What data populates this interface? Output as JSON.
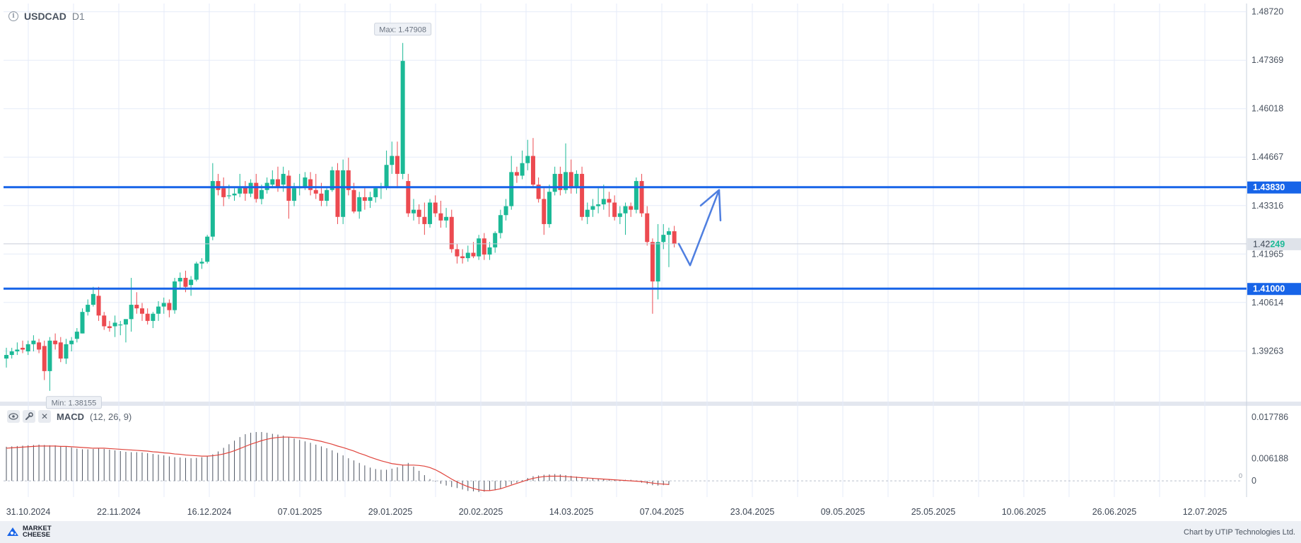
{
  "header": {
    "symbol": "USDCAD",
    "timeframe": "D1"
  },
  "macd": {
    "name": "MACD",
    "params": "(12, 26, 9)"
  },
  "footer": {
    "brand_line1": "MARKET",
    "brand_line2": "CHEESE",
    "credit": "Chart by UTIP Technologies Ltd."
  },
  "colors": {
    "bull": "#1bb996",
    "bear": "#ec4a50",
    "level_line": "#1764e8",
    "signal": "#e0443c",
    "arrow": "#4f7fe0",
    "grid": "#e6ebf8"
  },
  "chart_data": {
    "type": "candlestick",
    "symbol": "USDCAD",
    "timeframe": "D1",
    "ylim": [
      1.3785,
      1.4895
    ],
    "y_ticks": [
      "1.48720",
      "1.47369",
      "1.46018",
      "1.44667",
      "1.43316",
      "1.41965",
      "1.40614",
      "1.39263"
    ],
    "x_ticks": [
      "31.10.2024",
      "22.11.2024",
      "16.12.2024",
      "07.01.2025",
      "29.01.2025",
      "20.02.2025",
      "14.03.2025",
      "07.04.2025",
      "23.04.2025",
      "09.05.2025",
      "25.05.2025",
      "10.06.2025",
      "26.06.2025",
      "12.07.2025"
    ],
    "ohlc": [
      [
        1.3905,
        1.3935,
        1.388,
        1.3915
      ],
      [
        1.3915,
        1.3935,
        1.3905,
        1.3925
      ],
      [
        1.3925,
        1.395,
        1.3915,
        1.393
      ],
      [
        1.3935,
        1.3955,
        1.392,
        1.393
      ],
      [
        1.3925,
        1.3955,
        1.3915,
        1.3945
      ],
      [
        1.3945,
        1.397,
        1.3925,
        1.3955
      ],
      [
        1.395,
        1.396,
        1.392,
        1.393
      ],
      [
        1.394,
        1.3955,
        1.3845,
        1.387
      ],
      [
        1.387,
        1.3965,
        1.3815,
        1.3955
      ],
      [
        1.3955,
        1.3975,
        1.393,
        1.3945
      ],
      [
        1.395,
        1.3965,
        1.3895,
        1.3905
      ],
      [
        1.3905,
        1.396,
        1.389,
        1.3945
      ],
      [
        1.3945,
        1.3965,
        1.3925,
        1.3955
      ],
      [
        1.396,
        1.399,
        1.395,
        1.398
      ],
      [
        1.3975,
        1.4045,
        1.3975,
        1.4035
      ],
      [
        1.4035,
        1.407,
        1.4025,
        1.4055
      ],
      [
        1.4055,
        1.4105,
        1.405,
        1.4085
      ],
      [
        1.408,
        1.4105,
        1.401,
        1.4025
      ],
      [
        1.4025,
        1.4035,
        1.3985,
        1.3995
      ],
      [
        1.3995,
        1.401,
        1.398,
        1.399
      ],
      [
        1.3995,
        1.4025,
        1.3965,
        1.4005
      ],
      [
        1.4,
        1.401,
        1.397,
        1.4
      ],
      [
        1.4,
        1.4015,
        1.395,
        1.4015
      ],
      [
        1.4015,
        1.413,
        1.398,
        1.4055
      ],
      [
        1.4055,
        1.409,
        1.403,
        1.4045
      ],
      [
        1.4045,
        1.406,
        1.401,
        1.403
      ],
      [
        1.403,
        1.4045,
        1.4,
        1.401
      ],
      [
        1.401,
        1.4035,
        1.399,
        1.403
      ],
      [
        1.403,
        1.4065,
        1.401,
        1.405
      ],
      [
        1.405,
        1.4075,
        1.403,
        1.406
      ],
      [
        1.406,
        1.407,
        1.402,
        1.404
      ],
      [
        1.404,
        1.413,
        1.403,
        1.412
      ],
      [
        1.412,
        1.4145,
        1.41,
        1.413
      ],
      [
        1.413,
        1.415,
        1.409,
        1.4105
      ],
      [
        1.411,
        1.4135,
        1.408,
        1.4125
      ],
      [
        1.4125,
        1.4175,
        1.412,
        1.417
      ],
      [
        1.417,
        1.4185,
        1.4155,
        1.4175
      ],
      [
        1.4175,
        1.425,
        1.417,
        1.4245
      ],
      [
        1.4245,
        1.445,
        1.4235,
        1.44
      ],
      [
        1.44,
        1.442,
        1.436,
        1.4375
      ],
      [
        1.438,
        1.441,
        1.433,
        1.4355
      ],
      [
        1.436,
        1.439,
        1.435,
        1.436
      ],
      [
        1.436,
        1.438,
        1.4345,
        1.4365
      ],
      [
        1.4365,
        1.442,
        1.4355,
        1.438
      ],
      [
        1.4385,
        1.44,
        1.4345,
        1.4365
      ],
      [
        1.4365,
        1.4405,
        1.4355,
        1.4395
      ],
      [
        1.4395,
        1.442,
        1.434,
        1.435
      ],
      [
        1.435,
        1.439,
        1.4335,
        1.4375
      ],
      [
        1.4375,
        1.441,
        1.4365,
        1.4395
      ],
      [
        1.439,
        1.443,
        1.438,
        1.4405
      ],
      [
        1.4405,
        1.444,
        1.437,
        1.4385
      ],
      [
        1.439,
        1.444,
        1.437,
        1.442
      ],
      [
        1.4415,
        1.443,
        1.4295,
        1.4345
      ],
      [
        1.4345,
        1.4395,
        1.433,
        1.438
      ],
      [
        1.438,
        1.442,
        1.436,
        1.4385
      ],
      [
        1.4385,
        1.4425,
        1.4375,
        1.441
      ],
      [
        1.4405,
        1.4425,
        1.436,
        1.4375
      ],
      [
        1.4375,
        1.442,
        1.435,
        1.4365
      ],
      [
        1.4365,
        1.4395,
        1.433,
        1.4345
      ],
      [
        1.4345,
        1.438,
        1.433,
        1.4375
      ],
      [
        1.4375,
        1.444,
        1.437,
        1.443
      ],
      [
        1.443,
        1.445,
        1.428,
        1.43
      ],
      [
        1.43,
        1.446,
        1.428,
        1.443
      ],
      [
        1.443,
        1.4465,
        1.436,
        1.4375
      ],
      [
        1.4375,
        1.4395,
        1.431,
        1.4315
      ],
      [
        1.4315,
        1.437,
        1.4295,
        1.4355
      ],
      [
        1.4355,
        1.438,
        1.432,
        1.4345
      ],
      [
        1.4345,
        1.437,
        1.4325,
        1.4355
      ],
      [
        1.4355,
        1.4385,
        1.434,
        1.438
      ],
      [
        1.438,
        1.4395,
        1.435,
        1.4385
      ],
      [
        1.4385,
        1.4485,
        1.4375,
        1.4445
      ],
      [
        1.4445,
        1.451,
        1.442,
        1.447
      ],
      [
        1.447,
        1.451,
        1.438,
        1.442
      ],
      [
        1.442,
        1.4785,
        1.4405,
        1.4735
      ],
      [
        1.44,
        1.442,
        1.43,
        1.431
      ],
      [
        1.431,
        1.435,
        1.429,
        1.432
      ],
      [
        1.432,
        1.4335,
        1.428,
        1.43
      ],
      [
        1.43,
        1.434,
        1.425,
        1.428
      ],
      [
        1.428,
        1.435,
        1.427,
        1.434
      ],
      [
        1.434,
        1.436,
        1.43,
        1.431
      ],
      [
        1.431,
        1.4345,
        1.427,
        1.429
      ],
      [
        1.429,
        1.4325,
        1.427,
        1.43
      ],
      [
        1.43,
        1.432,
        1.42,
        1.421
      ],
      [
        1.421,
        1.4225,
        1.417,
        1.419
      ],
      [
        1.419,
        1.421,
        1.417,
        1.4185
      ],
      [
        1.4185,
        1.422,
        1.4175,
        1.42
      ],
      [
        1.42,
        1.423,
        1.4185,
        1.419
      ],
      [
        1.419,
        1.425,
        1.418,
        1.424
      ],
      [
        1.424,
        1.4255,
        1.418,
        1.4195
      ],
      [
        1.4195,
        1.423,
        1.418,
        1.4215
      ],
      [
        1.4215,
        1.426,
        1.42,
        1.4255
      ],
      [
        1.4255,
        1.432,
        1.424,
        1.4305
      ],
      [
        1.4305,
        1.435,
        1.429,
        1.433
      ],
      [
        1.433,
        1.447,
        1.432,
        1.4425
      ],
      [
        1.4425,
        1.444,
        1.4395,
        1.4415
      ],
      [
        1.4415,
        1.4485,
        1.4405,
        1.445
      ],
      [
        1.445,
        1.4515,
        1.443,
        1.447
      ],
      [
        1.447,
        1.452,
        1.438,
        1.439
      ],
      [
        1.439,
        1.441,
        1.434,
        1.435
      ],
      [
        1.435,
        1.438,
        1.425,
        1.428
      ],
      [
        1.428,
        1.439,
        1.427,
        1.437
      ],
      [
        1.437,
        1.444,
        1.436,
        1.442
      ],
      [
        1.442,
        1.444,
        1.436,
        1.4375
      ],
      [
        1.4375,
        1.4505,
        1.4365,
        1.4425
      ],
      [
        1.4425,
        1.446,
        1.4365,
        1.438
      ],
      [
        1.438,
        1.443,
        1.4365,
        1.442
      ],
      [
        1.442,
        1.444,
        1.429,
        1.43
      ],
      [
        1.43,
        1.434,
        1.428,
        1.432
      ],
      [
        1.432,
        1.435,
        1.43,
        1.433
      ],
      [
        1.433,
        1.438,
        1.431,
        1.4335
      ],
      [
        1.4335,
        1.439,
        1.432,
        1.435
      ],
      [
        1.435,
        1.437,
        1.43,
        1.434
      ],
      [
        1.434,
        1.436,
        1.429,
        1.43
      ],
      [
        1.43,
        1.433,
        1.428,
        1.431
      ],
      [
        1.431,
        1.434,
        1.425,
        1.433
      ],
      [
        1.433,
        1.434,
        1.43,
        1.432
      ],
      [
        1.432,
        1.441,
        1.431,
        1.44
      ],
      [
        1.44,
        1.442,
        1.43,
        1.431
      ],
      [
        1.431,
        1.433,
        1.422,
        1.423
      ],
      [
        1.423,
        1.424,
        1.403,
        1.412
      ],
      [
        1.412,
        1.428,
        1.407,
        1.423
      ],
      [
        1.423,
        1.428,
        1.421,
        1.425
      ],
      [
        1.425,
        1.427,
        1.416,
        1.426
      ],
      [
        1.426,
        1.4275,
        1.4215,
        1.4225
      ]
    ],
    "max_label": "Max: 1.47908",
    "min_label": "Min: 1.38155",
    "horizontal_levels": [
      {
        "value": 1.4383,
        "label": "1.43830"
      },
      {
        "value": 1.41,
        "label": "1.41000"
      }
    ],
    "last_price": {
      "value": 1.42249,
      "label_prefix": "1.42",
      "label_suffix": "249"
    },
    "forecast_arrow": [
      [
        1.4225,
        1.4165
      ],
      [
        1.4375,
        1.429
      ]
    ],
    "macd": {
      "params": "(12, 26, 9)",
      "ylim": [
        -0.0045,
        0.0205
      ],
      "y_ticks": [
        "0.017786",
        "0.006188",
        "0"
      ],
      "histogram": [
        0.0095,
        0.0096,
        0.0097,
        0.0098,
        0.0099,
        0.01,
        0.0101,
        0.01,
        0.0099,
        0.0099,
        0.0097,
        0.0095,
        0.0093,
        0.009,
        0.0088,
        0.0088,
        0.0089,
        0.009,
        0.0089,
        0.0087,
        0.0085,
        0.0083,
        0.0081,
        0.008,
        0.008,
        0.0079,
        0.0077,
        0.0075,
        0.0073,
        0.0071,
        0.0068,
        0.0066,
        0.0065,
        0.0064,
        0.0063,
        0.0064,
        0.0066,
        0.0069,
        0.0074,
        0.0082,
        0.0092,
        0.0102,
        0.0112,
        0.0122,
        0.013,
        0.0134,
        0.0136,
        0.0136,
        0.0134,
        0.0131,
        0.0129,
        0.0126,
        0.0122,
        0.0118,
        0.0114,
        0.011,
        0.0106,
        0.0101,
        0.0096,
        0.0091,
        0.0085,
        0.0078,
        0.0071,
        0.0063,
        0.0057,
        0.005,
        0.0043,
        0.0037,
        0.0033,
        0.0031,
        0.0031,
        0.0034,
        0.0038,
        0.0045,
        0.005,
        0.004,
        0.0028,
        0.0016,
        0.0005,
        -0.0002,
        -0.0008,
        -0.0013,
        -0.0017,
        -0.002,
        -0.0024,
        -0.0028,
        -0.0029,
        -0.0031,
        -0.003,
        -0.0028,
        -0.0026,
        -0.0022,
        -0.0015,
        -0.001,
        -0.0005,
        0.0002,
        0.0008,
        0.0013,
        0.0015,
        0.0017,
        0.0018,
        0.0019,
        0.0018,
        0.0016,
        0.0014,
        0.0012,
        0.001,
        0.0009,
        0.0008,
        0.0007,
        0.0006,
        0.0005,
        0.0004,
        0.0003,
        0.0003,
        0.0003,
        0.0001,
        -0.0005,
        -0.0009,
        -0.0012,
        -0.0013,
        -0.0012,
        -0.0011
      ],
      "signal": [
        0.0091,
        0.0092,
        0.0093,
        0.0094,
        0.0095,
        0.0096,
        0.0097,
        0.0097,
        0.0097,
        0.0097,
        0.0096,
        0.0096,
        0.0095,
        0.0094,
        0.0093,
        0.0092,
        0.0091,
        0.0091,
        0.0091,
        0.009,
        0.0089,
        0.0088,
        0.0087,
        0.0086,
        0.0085,
        0.0084,
        0.0083,
        0.0081,
        0.008,
        0.0078,
        0.0077,
        0.0075,
        0.0074,
        0.0072,
        0.0071,
        0.007,
        0.0069,
        0.0069,
        0.007,
        0.0072,
        0.0075,
        0.0079,
        0.0084,
        0.009,
        0.0096,
        0.0102,
        0.0107,
        0.0112,
        0.0116,
        0.0119,
        0.0121,
        0.0122,
        0.0122,
        0.0121,
        0.012,
        0.0118,
        0.0116,
        0.0113,
        0.011,
        0.0106,
        0.0102,
        0.0097,
        0.0093,
        0.0088,
        0.0083,
        0.0077,
        0.0072,
        0.0066,
        0.0061,
        0.0056,
        0.0052,
        0.0048,
        0.0046,
        0.0044,
        0.0044,
        0.0044,
        0.0043,
        0.0041,
        0.0037,
        0.0031,
        0.0023,
        0.0014,
        0.0005,
        -0.0003,
        -0.001,
        -0.0016,
        -0.0021,
        -0.0025,
        -0.0027,
        -0.0027,
        -0.0025,
        -0.0022,
        -0.0017,
        -0.0012,
        -0.0007,
        -0.0002,
        0.0003,
        0.0007,
        0.001,
        0.0012,
        0.0013,
        0.0013,
        0.0013,
        0.0012,
        0.0011,
        0.001,
        0.0009,
        0.0008,
        0.0007,
        0.0006,
        0.0005,
        0.0004,
        0.0003,
        0.0002,
        0.0001,
        0,
        -0.0001,
        -0.0002,
        -0.0004,
        -0.0006,
        -0.0008,
        -0.0009,
        -0.001
      ]
    }
  }
}
